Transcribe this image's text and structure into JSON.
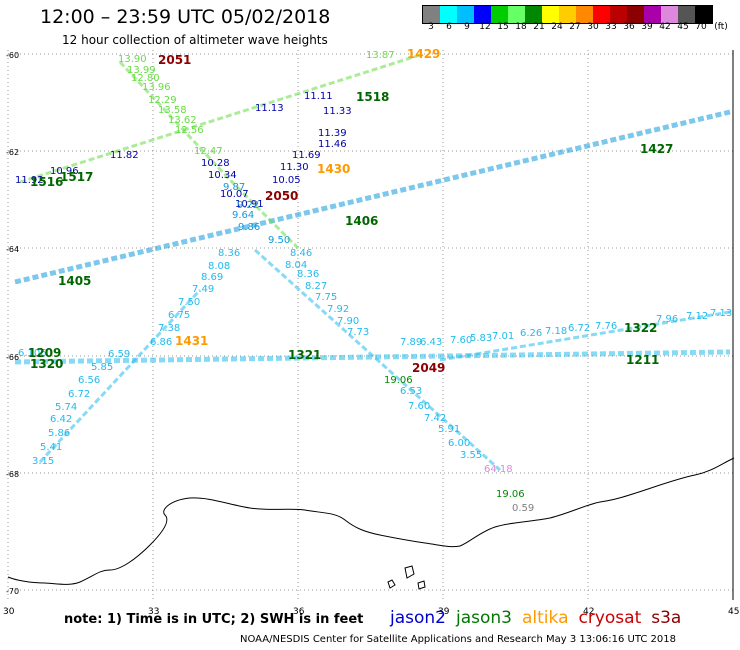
{
  "title": "12:00 – 23:59 UTC 05/02/2018",
  "subtitle": "12 hour collection of altimeter wave heights",
  "legend": {
    "colors": [
      "#808080",
      "#00ffff",
      "#00bfff",
      "#0000ff",
      "#00cc00",
      "#66ff66",
      "#008800",
      "#ffff00",
      "#ffcc00",
      "#ff8800",
      "#ff0000",
      "#bb0000",
      "#8b0000",
      "#aa00aa",
      "#dd88dd",
      "#555555",
      "#000000"
    ],
    "labels": [
      "3",
      "6",
      "9",
      "12",
      "15",
      "18",
      "21",
      "24",
      "27",
      "30",
      "33",
      "36",
      "39",
      "42",
      "45",
      "70"
    ],
    "unit": "(ft)"
  },
  "axes": {
    "lon_labels": [
      "30",
      "33",
      "36",
      "39",
      "42",
      "45"
    ],
    "lat_labels": [
      "-60",
      "-62",
      "-64",
      "-66",
      "-68",
      "-70"
    ]
  },
  "note": "note:  1) Time is in UTC;  2) SWH is in feet",
  "satellites": [
    {
      "name": "jason2",
      "color": "#0000cc"
    },
    {
      "name": "jason3",
      "color": "#007700"
    },
    {
      "name": "altika",
      "color": "#ff9900"
    },
    {
      "name": "cryosat",
      "color": "#cc0000"
    },
    {
      "name": "s3a",
      "color": "#8b0000"
    }
  ],
  "footer": "NOAA/NESDIS Center for Satellite Applications and Research    May  3 13:06:16 UTC 2018",
  "time_labels": [
    {
      "text": "2051",
      "color": "#8b0000"
    },
    {
      "text": "1429",
      "color": "#ff9900"
    },
    {
      "text": "1518",
      "color": "#006600"
    },
    {
      "text": "1517",
      "color": "#006600"
    },
    {
      "text": "1516",
      "color": "#006600"
    },
    {
      "text": "1430",
      "color": "#ff9900"
    },
    {
      "text": "2050",
      "color": "#8b0000"
    },
    {
      "text": "1427",
      "color": "#006600"
    },
    {
      "text": "1406",
      "color": "#006600"
    },
    {
      "text": "1405",
      "color": "#006600"
    },
    {
      "text": "1431",
      "color": "#ff9900"
    },
    {
      "text": "1321",
      "color": "#006600"
    },
    {
      "text": "1322",
      "color": "#006600"
    },
    {
      "text": "1320",
      "color": "#006600"
    },
    {
      "text": "2049",
      "color": "#8b0000"
    },
    {
      "text": "1209",
      "color": "#006600"
    },
    {
      "text": "1211",
      "color": "#006600"
    }
  ],
  "wave_labels": [
    {
      "text": "13.87",
      "color": "#66dd44"
    },
    {
      "text": "13.90",
      "color": "#66dd44"
    },
    {
      "text": "13.99",
      "color": "#66dd44"
    },
    {
      "text": "12.80",
      "color": "#66dd44"
    },
    {
      "text": "13.96",
      "color": "#66dd44"
    },
    {
      "text": "12.29",
      "color": "#66dd44"
    },
    {
      "text": "13.58",
      "color": "#66dd44"
    },
    {
      "text": "13.62",
      "color": "#66dd44"
    },
    {
      "text": "12.56",
      "color": "#66dd44"
    },
    {
      "text": "12.47",
      "color": "#66dd44"
    },
    {
      "text": "11.13",
      "color": "#0000aa"
    },
    {
      "text": "11.11",
      "color": "#0000aa"
    },
    {
      "text": "11.33",
      "color": "#0000aa"
    },
    {
      "text": "11.39",
      "color": "#0000aa"
    },
    {
      "text": "11.46",
      "color": "#0000aa"
    },
    {
      "text": "11.69",
      "color": "#0000aa"
    },
    {
      "text": "11.30",
      "color": "#0000aa"
    },
    {
      "text": "10.05",
      "color": "#0000aa"
    },
    {
      "text": "11.82",
      "color": "#0000aa"
    },
    {
      "text": "10.96",
      "color": "#0000aa"
    },
    {
      "text": "11.92",
      "color": "#0000aa"
    },
    {
      "text": "10.28",
      "color": "#0000aa"
    },
    {
      "text": "10.34",
      "color": "#0000aa"
    },
    {
      "text": "10.07",
      "color": "#0000aa"
    },
    {
      "text": "10.91",
      "color": "#0000aa"
    },
    {
      "text": "9.87",
      "color": "#1199dd"
    },
    {
      "text": "9.22",
      "color": "#1199dd"
    },
    {
      "text": "9.64",
      "color": "#1199dd"
    },
    {
      "text": "9.86",
      "color": "#1199dd"
    },
    {
      "text": "9.50",
      "color": "#1199dd"
    },
    {
      "text": "8.36",
      "color": "#22bbee"
    },
    {
      "text": "8.08",
      "color": "#22bbee"
    },
    {
      "text": "8.69",
      "color": "#22bbee"
    },
    {
      "text": "7.49",
      "color": "#22bbee"
    },
    {
      "text": "7.50",
      "color": "#22bbee"
    },
    {
      "text": "6.75",
      "color": "#22bbee"
    },
    {
      "text": "7.38",
      "color": "#22bbee"
    },
    {
      "text": "6.86",
      "color": "#22bbee"
    },
    {
      "text": "8.46",
      "color": "#22bbee"
    },
    {
      "text": "8.04",
      "color": "#22bbee"
    },
    {
      "text": "8.36",
      "color": "#22bbee"
    },
    {
      "text": "8.27",
      "color": "#22bbee"
    },
    {
      "text": "7.75",
      "color": "#22bbee"
    },
    {
      "text": "7.92",
      "color": "#22bbee"
    },
    {
      "text": "7.90",
      "color": "#22bbee"
    },
    {
      "text": "7.73",
      "color": "#22bbee"
    },
    {
      "text": "6.106",
      "color": "#22bbee"
    },
    {
      "text": "6.59",
      "color": "#22bbee"
    },
    {
      "text": "5.85",
      "color": "#22bbee"
    },
    {
      "text": "6.56",
      "color": "#22bbee"
    },
    {
      "text": "6.72",
      "color": "#22bbee"
    },
    {
      "text": "5.74",
      "color": "#22bbee"
    },
    {
      "text": "6.42",
      "color": "#22bbee"
    },
    {
      "text": "5.86",
      "color": "#22bbee"
    },
    {
      "text": "5.41",
      "color": "#22bbee"
    },
    {
      "text": "3.15",
      "color": "#22bbee"
    },
    {
      "text": "7.89",
      "color": "#22bbee"
    },
    {
      "text": "6.43",
      "color": "#22bbee"
    },
    {
      "text": "7.60",
      "color": "#22bbee"
    },
    {
      "text": "5.83",
      "color": "#22bbee"
    },
    {
      "text": "7.01",
      "color": "#22bbee"
    },
    {
      "text": "6.26",
      "color": "#22bbee"
    },
    {
      "text": "7.18",
      "color": "#22bbee"
    },
    {
      "text": "6.72",
      "color": "#22bbee"
    },
    {
      "text": "7.76",
      "color": "#22bbee"
    },
    {
      "text": "7.96",
      "color": "#22bbee"
    },
    {
      "text": "7.12",
      "color": "#22bbee"
    },
    {
      "text": "7.13",
      "color": "#22bbee"
    },
    {
      "text": "6.53",
      "color": "#22bbee"
    },
    {
      "text": "7.60",
      "color": "#22bbee"
    },
    {
      "text": "7.42",
      "color": "#22bbee"
    },
    {
      "text": "5.91",
      "color": "#22bbee"
    },
    {
      "text": "6.00",
      "color": "#22bbee"
    },
    {
      "text": "3.55",
      "color": "#22bbee"
    },
    {
      "text": "19.06",
      "color": "#008800"
    },
    {
      "text": "19.06",
      "color": "#008800"
    },
    {
      "text": "64.18",
      "color": "#dd88dd"
    },
    {
      "text": "0.59",
      "color": "#808080"
    }
  ]
}
